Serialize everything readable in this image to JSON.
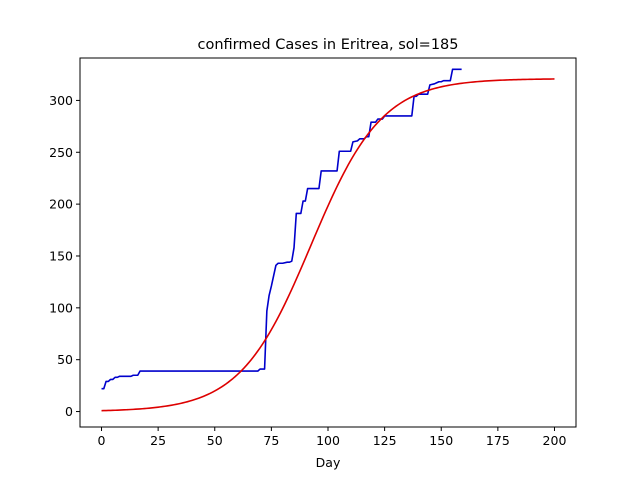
{
  "chart_data": {
    "type": "line",
    "title": "confirmed Cases in Eritrea, sol=185",
    "xlabel": "Day",
    "ylabel": "",
    "xlim": [
      -9.5,
      209.5
    ],
    "ylim": [
      -14.9,
      340.9
    ],
    "x_ticks": [
      0,
      25,
      50,
      75,
      100,
      125,
      150,
      175,
      200
    ],
    "y_ticks": [
      0,
      50,
      100,
      150,
      200,
      250,
      300
    ],
    "grid": false,
    "legend": "none",
    "series": [
      {
        "color": "#0000cc",
        "points": [
          [
            0,
            22
          ],
          [
            1,
            22
          ],
          [
            2,
            29
          ],
          [
            3,
            29
          ],
          [
            4,
            31
          ],
          [
            5,
            31
          ],
          [
            6,
            33
          ],
          [
            7,
            33
          ],
          [
            8,
            34
          ],
          [
            9,
            34
          ],
          [
            10,
            34
          ],
          [
            11,
            34
          ],
          [
            12,
            34
          ],
          [
            13,
            34
          ],
          [
            14,
            35
          ],
          [
            15,
            35
          ],
          [
            16,
            35
          ],
          [
            17,
            39
          ],
          [
            18,
            39
          ],
          [
            30,
            39
          ],
          [
            45,
            39
          ],
          [
            60,
            39
          ],
          [
            69,
            39
          ],
          [
            70,
            41
          ],
          [
            72,
            41
          ],
          [
            73,
            97
          ],
          [
            74,
            112
          ],
          [
            75,
            121
          ],
          [
            76,
            131
          ],
          [
            77,
            141
          ],
          [
            78,
            143
          ],
          [
            80,
            143
          ],
          [
            82,
            144
          ],
          [
            83,
            144
          ],
          [
            84,
            145
          ],
          [
            85,
            158
          ],
          [
            86,
            191
          ],
          [
            87,
            191
          ],
          [
            88,
            191
          ],
          [
            89,
            203
          ],
          [
            90,
            203
          ],
          [
            91,
            215
          ],
          [
            92,
            215
          ],
          [
            95,
            215
          ],
          [
            96,
            215
          ],
          [
            97,
            232
          ],
          [
            99,
            232
          ],
          [
            101,
            232
          ],
          [
            103,
            232
          ],
          [
            104,
            232
          ],
          [
            105,
            251
          ],
          [
            107,
            251
          ],
          [
            109,
            251
          ],
          [
            110,
            251
          ],
          [
            111,
            260
          ],
          [
            113,
            261
          ],
          [
            114,
            263
          ],
          [
            116,
            263
          ],
          [
            117,
            265
          ],
          [
            118,
            265
          ],
          [
            119,
            279
          ],
          [
            120,
            279
          ],
          [
            121,
            279
          ],
          [
            122,
            282
          ],
          [
            124,
            282
          ],
          [
            125,
            285
          ],
          [
            127,
            285
          ],
          [
            130,
            285
          ],
          [
            133,
            285
          ],
          [
            136,
            285
          ],
          [
            137,
            285
          ],
          [
            138,
            304
          ],
          [
            139,
            304
          ],
          [
            140,
            306
          ],
          [
            141,
            306
          ],
          [
            143,
            306
          ],
          [
            144,
            306
          ],
          [
            145,
            315
          ],
          [
            147,
            316
          ],
          [
            148,
            317
          ],
          [
            149,
            318
          ],
          [
            150,
            318
          ],
          [
            151,
            319
          ],
          [
            153,
            319
          ],
          [
            154,
            319
          ],
          [
            155,
            330
          ],
          [
            157,
            330
          ],
          [
            159,
            330
          ]
        ]
      },
      {
        "color": "#dd0000",
        "curve": {
          "capacity": 321,
          "midpoint": 92.5,
          "rate": 0.064,
          "x_start": 0,
          "x_end": 200
        }
      }
    ]
  }
}
